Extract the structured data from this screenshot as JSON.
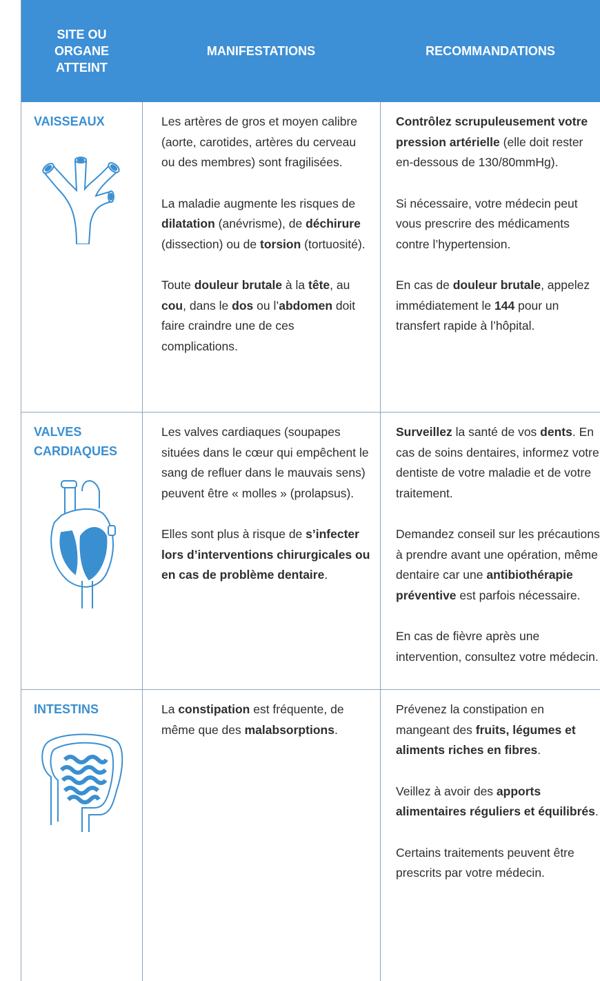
{
  "table": {
    "header": [
      "SITE OU ORGANE ATTEINT",
      "MANIFESTATIONS",
      "RECOMMANDATIONS"
    ],
    "rows": [
      {
        "site": "VAISSEAUX",
        "manifestations": [
          [
            "Les artères de gros et moyen calibre (aorte, carotides, artères du cerveau ou des membres) sont fragilisées."
          ],
          [
            "La maladie augmente les risques de ",
            {
              "t": "dilatation",
              "b": true
            },
            " (anévrisme), de ",
            {
              "t": "déchirure",
              "b": true
            },
            " (dissection) ou de ",
            {
              "t": "torsion",
              "b": true
            },
            " (tortuosité)."
          ],
          [
            "Toute ",
            {
              "t": "douleur brutale",
              "b": true
            },
            " à la ",
            {
              "t": "tête",
              "b": true
            },
            ", au ",
            {
              "t": "cou",
              "b": true
            },
            ", dans le ",
            {
              "t": "dos",
              "b": true
            },
            " ou l’",
            {
              "t": "abdomen",
              "b": true
            },
            " doit faire craindre une de ces complications."
          ]
        ],
        "recommandations": [
          [
            {
              "t": "Contrôlez scrupuleusement votre pression artérielle",
              "b": true
            },
            " (elle doit rester en-dessous de 130/80mmHg)."
          ],
          [
            "Si nécessaire, votre médecin peut vous prescrire des médicaments contre l’hypertension."
          ],
          [
            "En cas de ",
            {
              "t": "douleur brutale",
              "b": true
            },
            ", appelez immédiatement le ",
            {
              "t": "144",
              "b": true
            },
            " pour un transfert rapide à l’hôpital."
          ]
        ]
      },
      {
        "site": "VALVES CARDIAQUES",
        "manifestations": [
          [
            "Les valves cardiaques (sou­papes situées dans le cœur qui empêchent le sang de refluer dans le mauvais sens) peuvent être « molles » (prolapsus)."
          ],
          [
            "Elles sont plus à risque de ",
            {
              "t": "s’infecter lors d’interventions chirurgicales ou en cas de problème dentaire",
              "b": true
            },
            "."
          ]
        ],
        "recommandations": [
          [
            {
              "t": "Surveillez",
              "b": true
            },
            " la santé de vos ",
            {
              "t": "dents",
              "b": true
            },
            ". En cas de soins dentaires, informez votre dentiste de votre maladie et de votre traitement."
          ],
          [
            "Demandez conseil sur les pré­cautions à prendre avant une opération, même dentaire car une ",
            {
              "t": "antibiothérapie préventive",
              "b": true
            },
            " est parfois nécessaire."
          ],
          [
            "En cas de fièvre après une intervention, consultez votre médecin."
          ]
        ]
      },
      {
        "site": "INTESTINS",
        "manifestations": [
          [
            "La ",
            {
              "t": "constipation",
              "b": true
            },
            " est fréquente, de même que des ",
            {
              "t": "malabsorptions",
              "b": true
            },
            "."
          ]
        ],
        "recommandations": [
          [
            "Prévenez la constipation en mangeant des ",
            {
              "t": "fruits, légumes et aliments riches en fibres",
              "b": true
            },
            "."
          ],
          [
            "Veillez à avoir des ",
            {
              "t": "apports alimentaires réguliers et équilibrés",
              "b": true
            },
            "."
          ],
          [
            "Certains traitements peuvent être prescrits par votre médecin."
          ]
        ]
      }
    ]
  }
}
